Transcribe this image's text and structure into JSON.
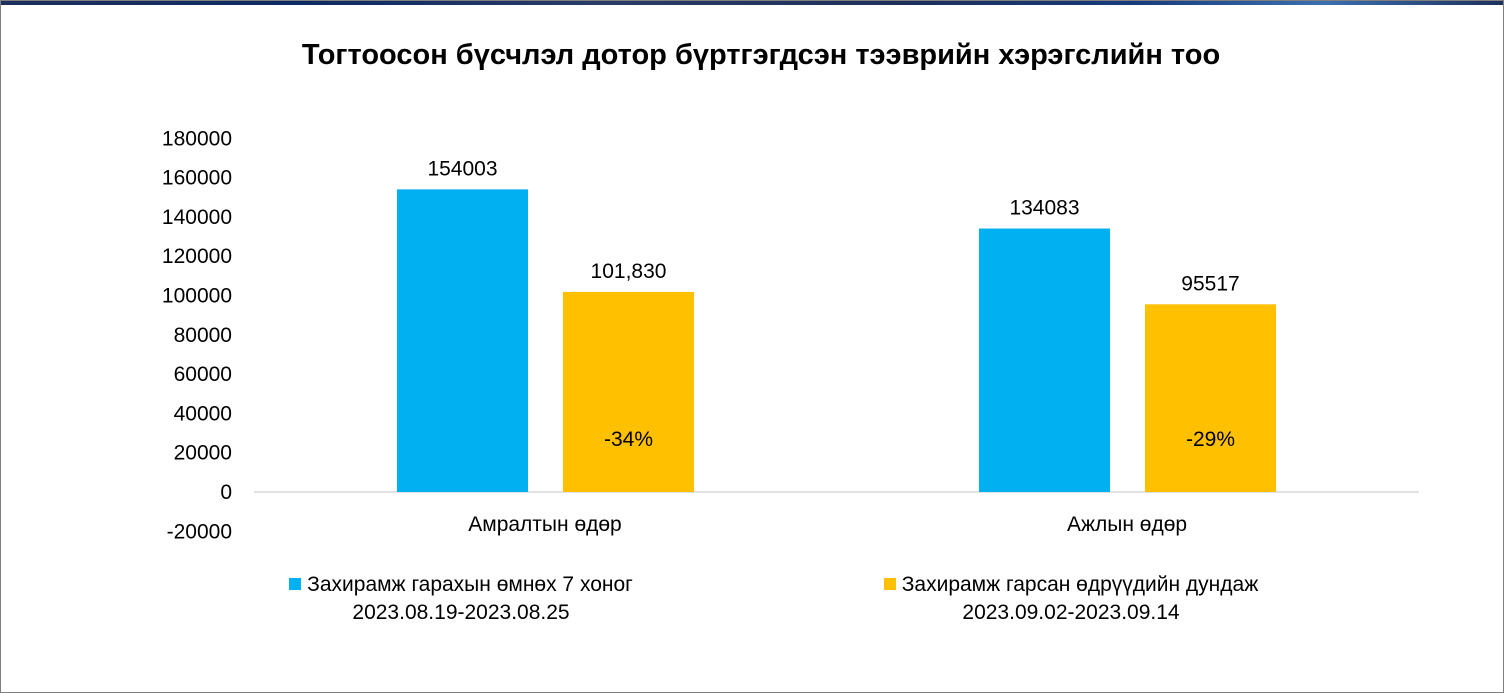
{
  "colors": {
    "series_blue": "#00b0f0",
    "series_yellow": "#ffc000",
    "axis_line": "#d9d9d9"
  },
  "chart_data": {
    "type": "bar",
    "title": "Тогтоосон бүсчлэл дотор бүртгэгдсэн тээврийн хэрэгслийн тоо",
    "xlabel": "",
    "ylabel": "",
    "ylim": [
      -20000,
      180000
    ],
    "y_ticks": [
      "180000",
      "160000",
      "140000",
      "120000",
      "100000",
      "80000",
      "60000",
      "40000",
      "20000",
      "0",
      "-20000"
    ],
    "categories": [
      "Амралтын өдөр",
      "Ажлын өдөр"
    ],
    "grid": false,
    "legend_position": "bottom",
    "series": [
      {
        "name": "Захирамж гарахын өмнөх 7 хоног",
        "sub": "2023.08.19-2023.08.25",
        "color": "#00b0f0",
        "values": [
          154003,
          134083
        ],
        "labels": [
          "154003",
          "134083"
        ]
      },
      {
        "name": "Захирамж гарсан өдрүүдийн дундаж",
        "sub": "2023.09.02-2023.09.14",
        "color": "#ffc000",
        "values": [
          101830,
          95517
        ],
        "labels": [
          "101,830",
          "95517"
        ]
      }
    ],
    "annotations": [
      "-34%",
      "-29%"
    ]
  }
}
